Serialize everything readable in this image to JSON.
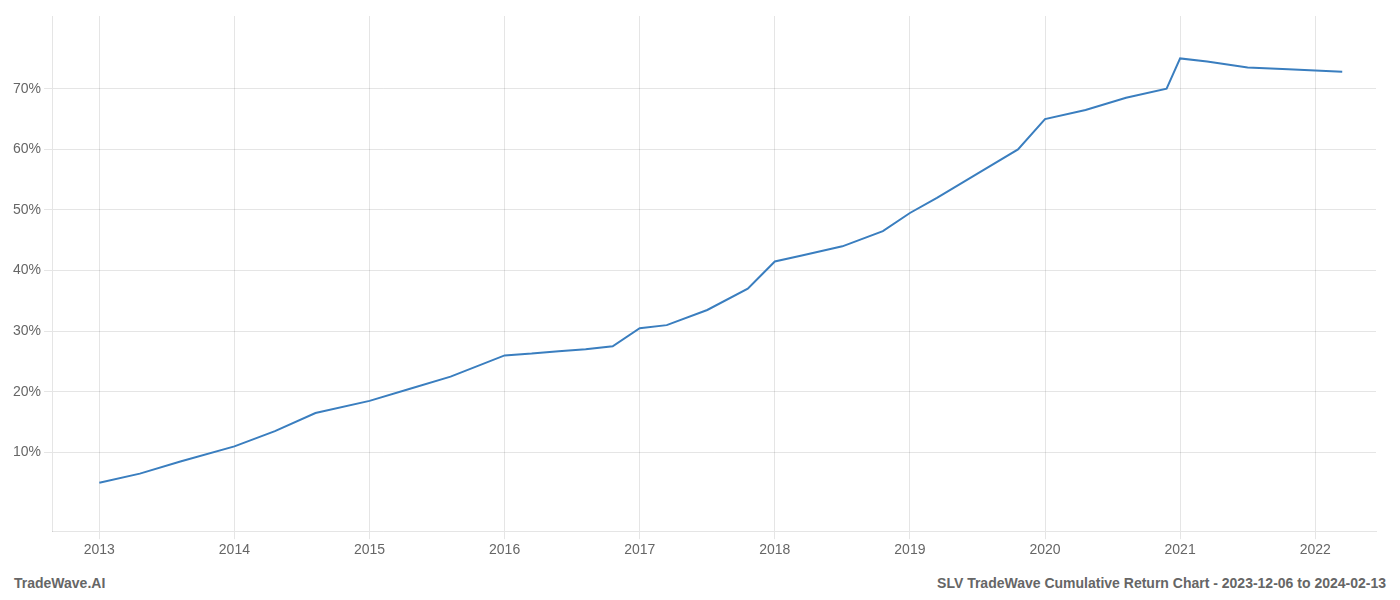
{
  "chart_data": {
    "type": "line",
    "x": [
      2013.0,
      2013.3,
      2013.6,
      2014.0,
      2014.3,
      2014.6,
      2015.0,
      2015.3,
      2015.6,
      2016.0,
      2016.2,
      2016.4,
      2016.6,
      2016.8,
      2017.0,
      2017.2,
      2017.5,
      2017.8,
      2018.0,
      2018.2,
      2018.5,
      2018.8,
      2019.0,
      2019.2,
      2019.5,
      2019.8,
      2020.0,
      2020.3,
      2020.6,
      2020.9,
      2021.0,
      2021.2,
      2021.5,
      2021.8,
      2022.0,
      2022.2
    ],
    "values": [
      5.0,
      6.5,
      8.5,
      11.0,
      13.5,
      16.5,
      18.5,
      20.5,
      22.5,
      26.0,
      26.3,
      26.7,
      27.0,
      27.5,
      30.5,
      31.0,
      33.5,
      37.0,
      41.5,
      42.5,
      44.0,
      46.5,
      49.5,
      52.0,
      56.0,
      60.0,
      65.0,
      66.5,
      68.5,
      70.0,
      75.0,
      74.5,
      73.5,
      73.2,
      73.0,
      72.8
    ],
    "color": "#3a7ebf",
    "xlim": [
      2012.65,
      2022.45
    ],
    "xticks": [
      2013,
      2014,
      2015,
      2016,
      2017,
      2018,
      2019,
      2020,
      2021,
      2022
    ],
    "ylim": [
      -3,
      82
    ],
    "yticks": [
      {
        "value": 10,
        "label": "10%"
      },
      {
        "value": 20,
        "label": "20%"
      },
      {
        "value": 30,
        "label": "30%"
      },
      {
        "value": 40,
        "label": "40%"
      },
      {
        "value": 50,
        "label": "50%"
      },
      {
        "value": 60,
        "label": "60%"
      },
      {
        "value": 70,
        "label": "70%"
      }
    ],
    "grid": true,
    "annotations": [
      "TradeWave.AI",
      "SLV TradeWave Cumulative Return Chart - 2023-12-06 to 2024-02-13"
    ]
  }
}
